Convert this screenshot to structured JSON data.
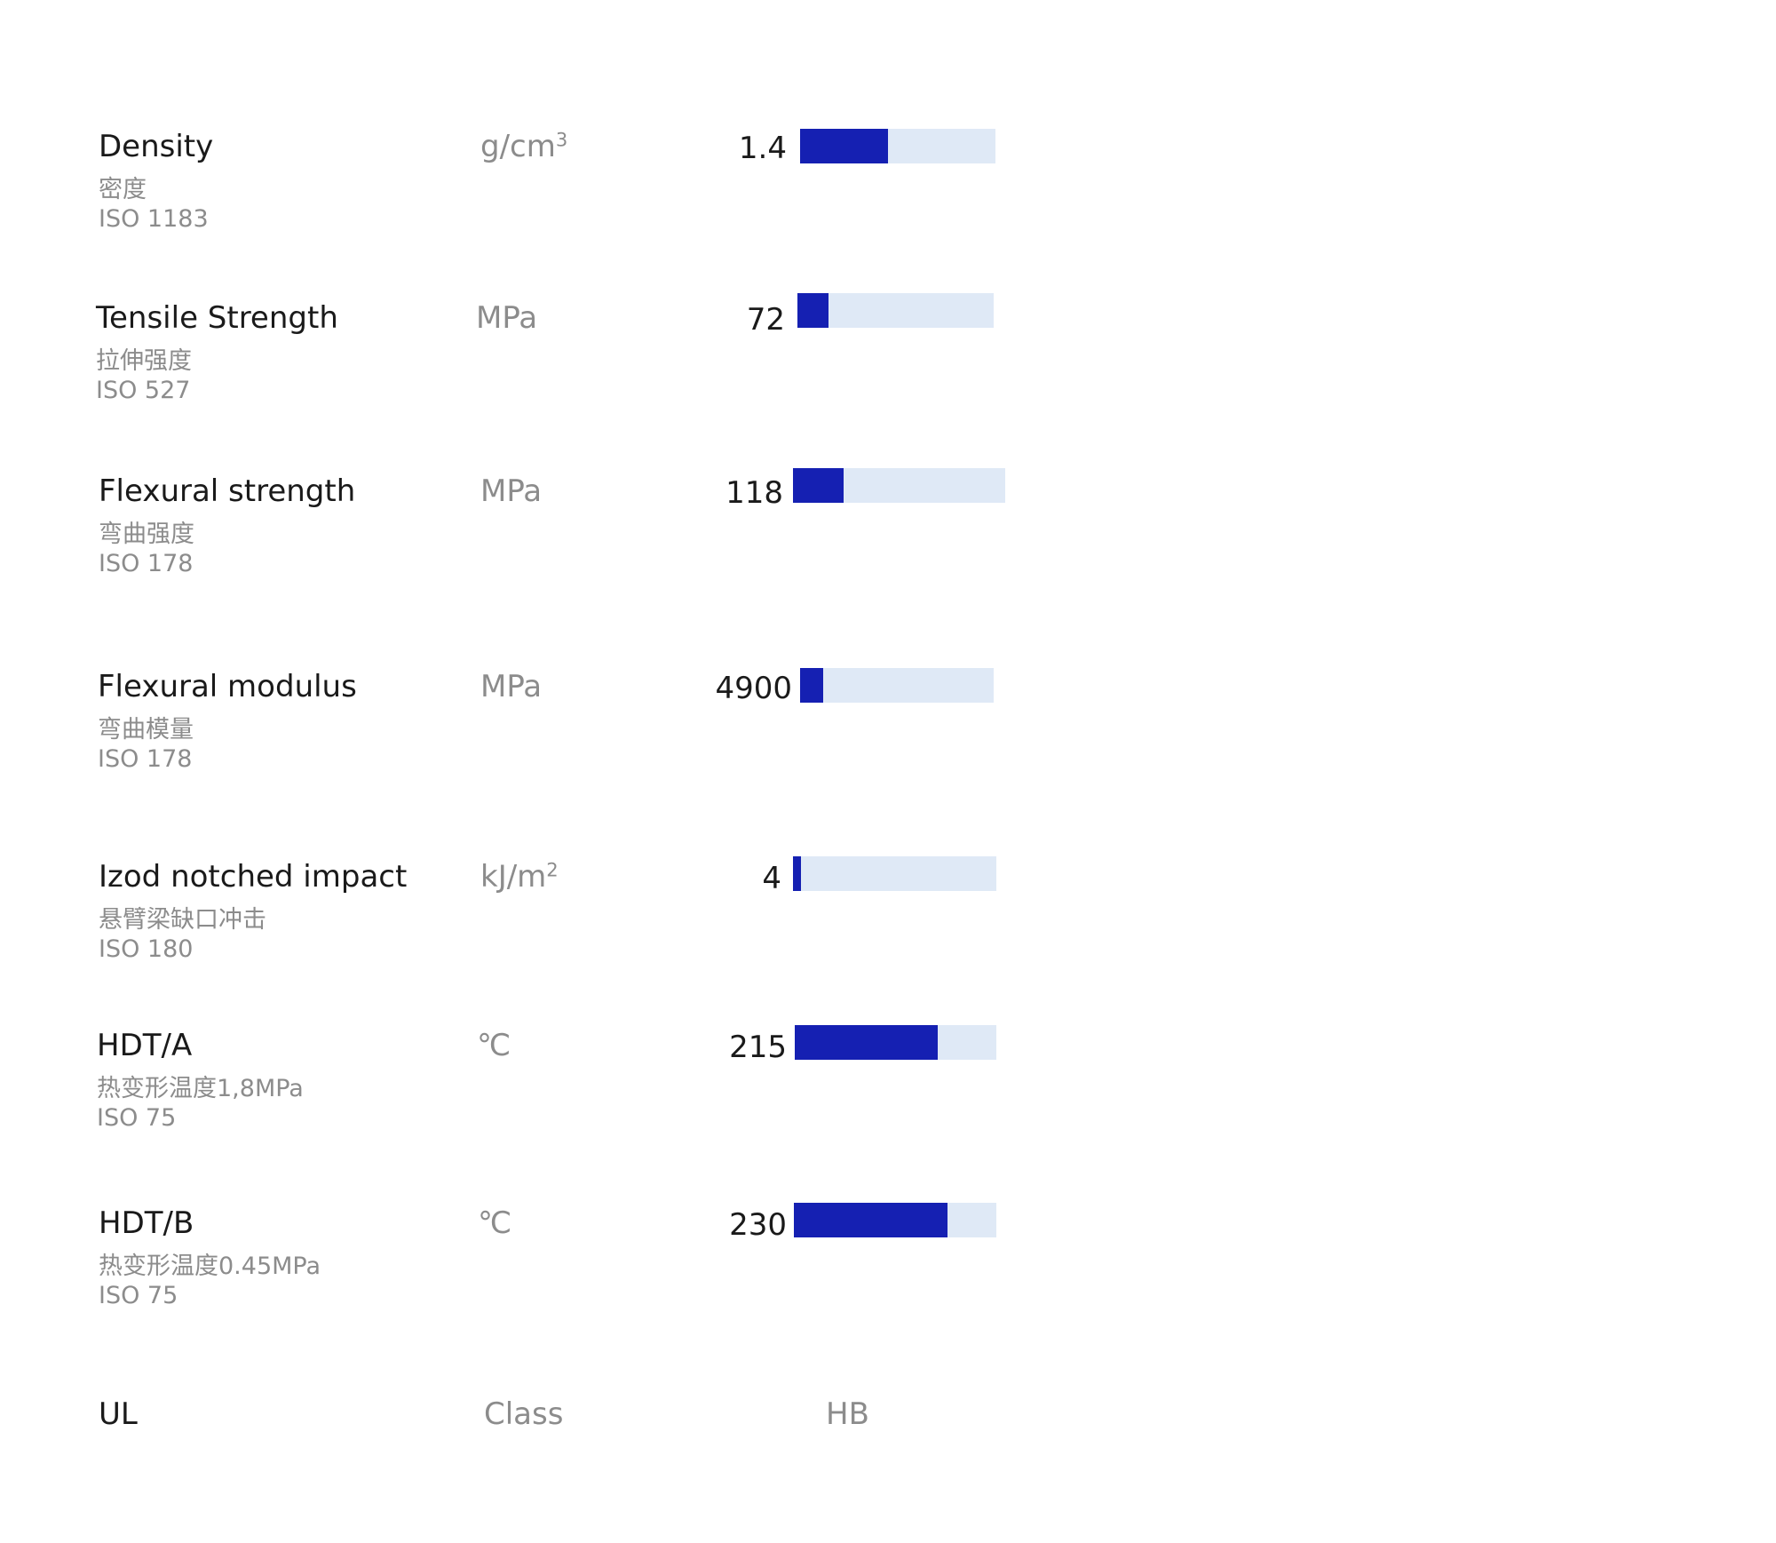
{
  "colors": {
    "bar_fill": "#1520b2",
    "bar_track": "#dfe9f6",
    "label": "#1a1a1a",
    "secondary": "#8c8c8c"
  },
  "chart_data": {
    "type": "bar",
    "orientation": "horizontal",
    "grid": false,
    "legend": "none",
    "categories": [
      "Density",
      "Tensile Strength",
      "Flexural strength",
      "Flexural modulus",
      "Izod notched impact",
      "HDT/A",
      "HDT/B"
    ],
    "values": [
      1.4,
      72,
      118,
      4900,
      4,
      215,
      230
    ],
    "fill_fraction": [
      0.45,
      0.16,
      0.24,
      0.12,
      0.04,
      0.71,
      0.76
    ],
    "rows": [
      {
        "name": "Density",
        "name_cn": "密度",
        "standard": "ISO 1183",
        "unit_base": "g/cm",
        "unit_sup": "3",
        "value_text": "1.4",
        "fill": 0.45
      },
      {
        "name": "Tensile Strength",
        "name_cn": "拉伸强度",
        "standard": "ISO 527",
        "unit_base": "MPa",
        "unit_sup": "",
        "value_text": "72",
        "fill": 0.16
      },
      {
        "name": "Flexural strength",
        "name_cn": "弯曲强度",
        "standard": "ISO 178",
        "unit_base": "MPa",
        "unit_sup": "",
        "value_text": "118",
        "fill": 0.24
      },
      {
        "name": "Flexural modulus",
        "name_cn": "弯曲模量",
        "standard": "ISO 178",
        "unit_base": "MPa",
        "unit_sup": "",
        "value_text": "4900",
        "fill": 0.12
      },
      {
        "name": "Izod notched impact",
        "name_cn": "悬臂梁缺口冲击",
        "standard": "ISO 180",
        "unit_base": "kJ/m",
        "unit_sup": "2",
        "value_text": "4",
        "fill": 0.04
      },
      {
        "name": "HDT/A",
        "name_cn": "热变形温度1,8MPa",
        "standard": "ISO 75",
        "unit_base": "℃",
        "unit_sup": "",
        "value_text": "215",
        "fill": 0.71
      },
      {
        "name": "HDT/B",
        "name_cn": "热变形温度0.45MPa",
        "standard": "ISO 75",
        "unit_base": "℃",
        "unit_sup": "",
        "value_text": "230",
        "fill": 0.76
      }
    ],
    "ul": {
      "name": "UL",
      "unit": "Class",
      "value": "HB"
    }
  }
}
